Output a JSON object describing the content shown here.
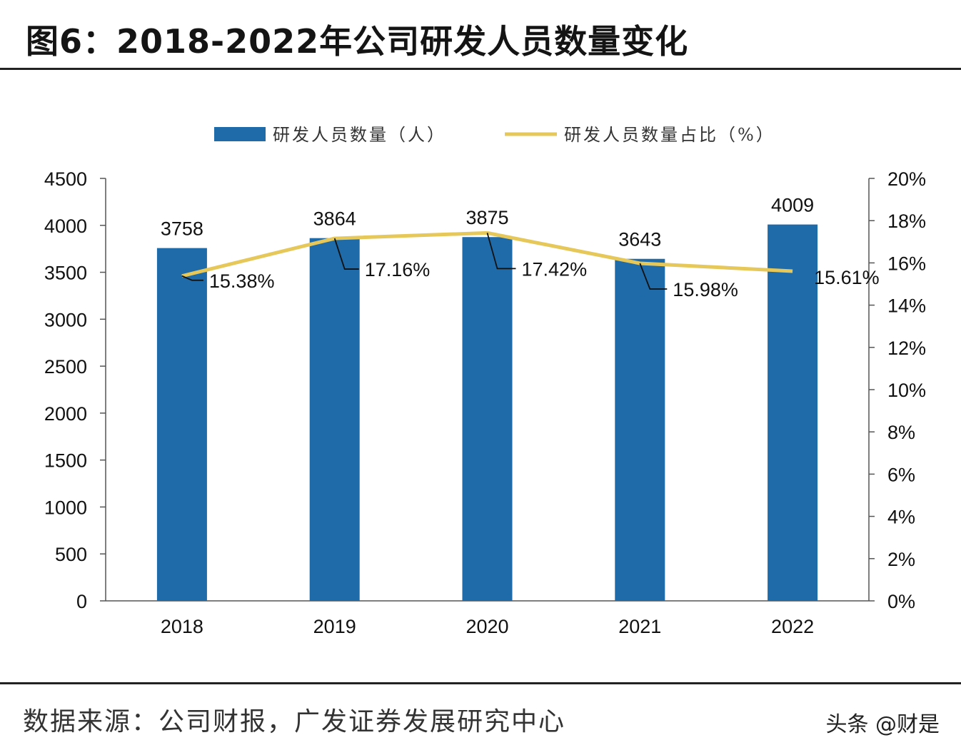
{
  "header": {
    "title": "图6：2018-2022年公司研发人员数量变化"
  },
  "footer": {
    "source": "数据来源：公司财报，广发证券发展研究中心",
    "watermark": "头条 @财是"
  },
  "colors": {
    "bar": "#1f6aa8",
    "line": "#e6c75a",
    "axis": "#555555"
  },
  "chart_data": {
    "type": "bar",
    "categories": [
      "2018",
      "2019",
      "2020",
      "2021",
      "2022"
    ],
    "series": [
      {
        "name": "研发人员数量（人）",
        "type": "bar",
        "axis": "left",
        "values": [
          3758,
          3864,
          3875,
          3643,
          4009
        ],
        "labels": [
          "3758",
          "3864",
          "3875",
          "3643",
          "4009"
        ]
      },
      {
        "name": "研发人员数量占比（%）",
        "type": "line",
        "axis": "right",
        "values": [
          15.38,
          17.16,
          17.42,
          15.98,
          15.61
        ],
        "labels": [
          "15.38%",
          "17.16%",
          "17.42%",
          "15.98%",
          "15.61%"
        ]
      }
    ],
    "y_left": {
      "ylim": [
        0,
        4500
      ],
      "ticks": [
        0,
        500,
        1000,
        1500,
        2000,
        2500,
        3000,
        3500,
        4000,
        4500
      ],
      "tick_labels": [
        "0",
        "500",
        "1000",
        "1500",
        "2000",
        "2500",
        "3000",
        "3500",
        "4000",
        "4500"
      ]
    },
    "y_right": {
      "ylim": [
        0,
        20
      ],
      "ticks": [
        0,
        2,
        4,
        6,
        8,
        10,
        12,
        14,
        16,
        18,
        20
      ],
      "tick_labels": [
        "0%",
        "2%",
        "4%",
        "6%",
        "8%",
        "10%",
        "12%",
        "14%",
        "16%",
        "18%",
        "20%"
      ]
    },
    "legend_position": "top-center",
    "grid": false
  }
}
